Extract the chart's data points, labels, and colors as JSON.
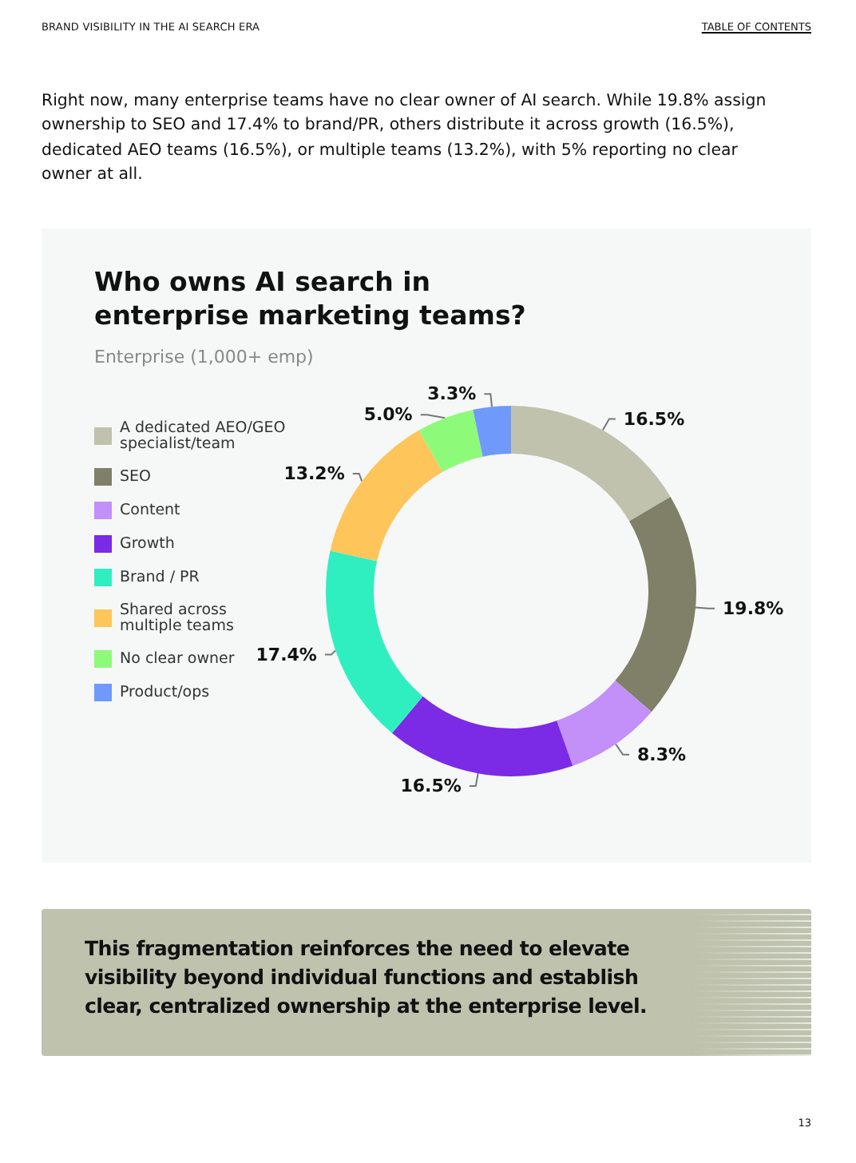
{
  "chart_data": {
    "type": "donut",
    "title": "Who owns AI search in enterprise marketing teams?",
    "subtitle": "Enterprise (1,000+ emp)",
    "categories": [
      "A dedicated AEO/GEO specialist/team",
      "SEO",
      "Content",
      "Growth",
      "Brand / PR",
      "Shared across multiple teams",
      "No clear owner",
      "Product/ops"
    ],
    "values": [
      16.5,
      19.8,
      8.3,
      16.5,
      17.4,
      13.2,
      5.0,
      3.3
    ],
    "colors": [
      "#c0c2ad",
      "#7f8067",
      "#c38ff8",
      "#7b2ae6",
      "#2fefc1",
      "#fdc55a",
      "#8efa7a",
      "#6f9afb"
    ],
    "value_labels": [
      "16.5%",
      "19.8%",
      "8.3%",
      "16.5%",
      "17.4%",
      "13.2%",
      "5.0%",
      "3.3%"
    ],
    "legend": "left",
    "annotations": [
      "BRAND VISIBILITY IN THE AI SEARCH ERA",
      "TABLE OF CONTENTS",
      "Right now, many enterprise teams have no clear owner of AI search. While 19.8% assign ownership to SEO and 17.4% to brand/PR, others distribute it across growth (16.5%), dedicated AEO teams (16.5%), or multiple teams (13.2%), with 5% reporting no clear owner at all.",
      "This fragmentation reinforces the need to elevate visibility beyond individual functions and establish clear, centralized ownership at the enterprise level.",
      "13"
    ]
  }
}
